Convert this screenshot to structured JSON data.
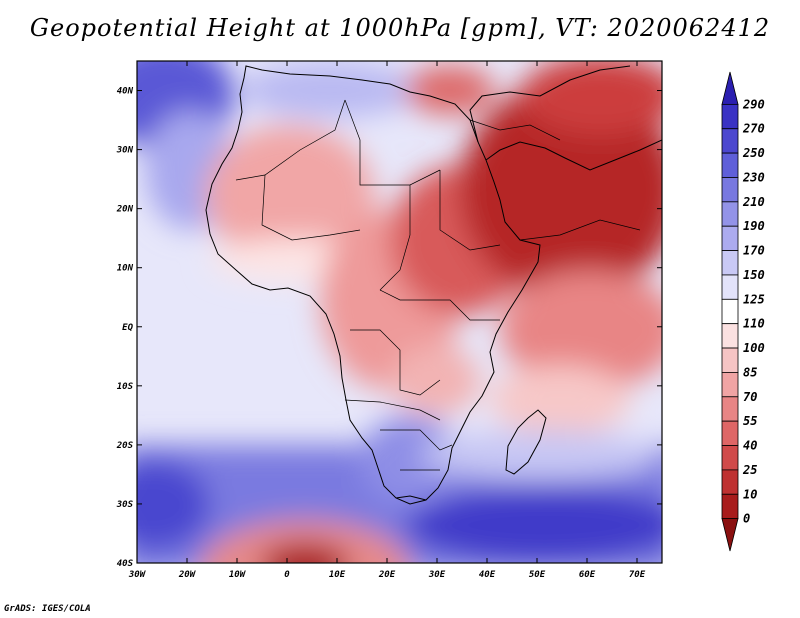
{
  "title": "Geopotential Height at 1000hPa [gpm], VT: 2020062412",
  "credit": "GrADS: IGES/COLA",
  "map": {
    "lat_labels": [
      "40N",
      "30N",
      "20N",
      "10N",
      "EQ",
      "10S",
      "20S",
      "30S",
      "40S"
    ],
    "lon_labels": [
      "30W",
      "20W",
      "10W",
      "0",
      "10E",
      "20E",
      "30E",
      "40E",
      "50E",
      "60E",
      "70E"
    ],
    "lat_range": [
      -40,
      45
    ],
    "lon_range": [
      -30,
      75
    ]
  },
  "colorbar": {
    "labels": [
      "290",
      "270",
      "250",
      "230",
      "210",
      "190",
      "170",
      "150",
      "125",
      "110",
      "100",
      "85",
      "70",
      "55",
      "40",
      "25",
      "10",
      "0"
    ],
    "colors": [
      "#2b1fb0",
      "#3a32c4",
      "#4c47cf",
      "#5f5fd9",
      "#7878e0",
      "#9393e8",
      "#acabef",
      "#c9c9f5",
      "#e3e3fa",
      "#ffffff",
      "#fbe1e1",
      "#f6c4c4",
      "#f0a4a4",
      "#e88585",
      "#de6666",
      "#d04a4a",
      "#bf3131",
      "#a81c1c",
      "#8a1010"
    ]
  }
}
